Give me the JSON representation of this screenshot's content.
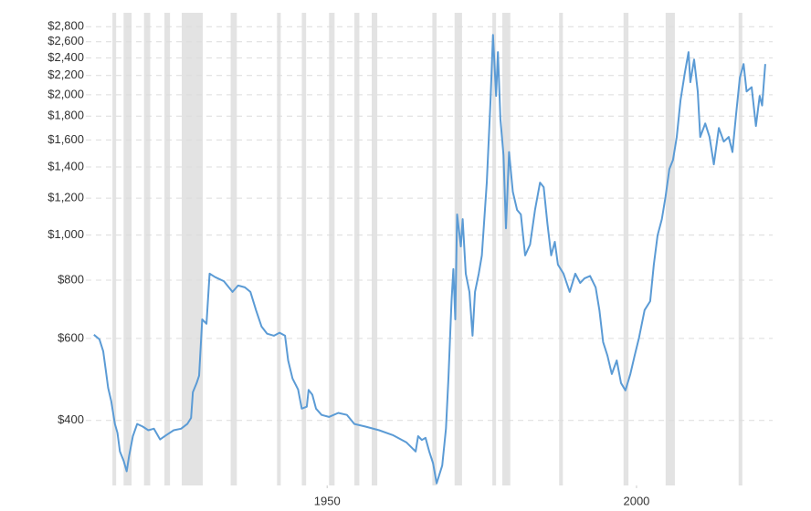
{
  "chart_data": {
    "type": "line",
    "log_scale": true,
    "grid": true,
    "xlim": [
      1911,
      2022
    ],
    "xticks": [
      1950,
      2000
    ],
    "ylim": [
      290,
      3000
    ],
    "yticks": [
      {
        "value": 400,
        "label": "$400"
      },
      {
        "value": 600,
        "label": "$600"
      },
      {
        "value": 800,
        "label": "$800"
      },
      {
        "value": 1000,
        "label": "$1,000"
      },
      {
        "value": 1200,
        "label": "$1,200"
      },
      {
        "value": 1400,
        "label": "$1,400"
      },
      {
        "value": 1600,
        "label": "$1,600"
      },
      {
        "value": 1800,
        "label": "$1,800"
      },
      {
        "value": 2000,
        "label": "$2,000"
      },
      {
        "value": 2200,
        "label": "$2,200"
      },
      {
        "value": 2400,
        "label": "$2,400"
      },
      {
        "value": 2600,
        "label": "$2,600"
      },
      {
        "value": 2800,
        "label": "$2,800"
      }
    ],
    "shade_color": "#e3e3e3",
    "shaded_ranges": [
      [
        1915.3,
        1915.9
      ],
      [
        1917.1,
        1918.4
      ],
      [
        1920.4,
        1921.4
      ],
      [
        1923.7,
        1924.6
      ],
      [
        1926.5,
        1929.9
      ],
      [
        1934.4,
        1935.4
      ],
      [
        1941.9,
        1942.5
      ],
      [
        1945.9,
        1946.6
      ],
      [
        1950.3,
        1951.2
      ],
      [
        1954.4,
        1955.2
      ],
      [
        1957.2,
        1958.1
      ],
      [
        1967.0,
        1967.7
      ],
      [
        1970.6,
        1971.8
      ],
      [
        1976.7,
        1977.3
      ],
      [
        1978.3,
        1979.6
      ],
      [
        1987.5,
        1988.1
      ],
      [
        1997.9,
        1998.7
      ],
      [
        2004.7,
        2006.2
      ],
      [
        2016.5,
        2017.1
      ]
    ],
    "x": [
      1912.3,
      1913.2,
      1913.8,
      1914.2,
      1914.6,
      1915.1,
      1915.7,
      1916.1,
      1916.5,
      1917.1,
      1917.6,
      1918.0,
      1918.6,
      1919.3,
      1920.2,
      1921.1,
      1922.0,
      1923.0,
      1924.0,
      1925.2,
      1926.4,
      1927.4,
      1928.0,
      1928.3,
      1928.9,
      1929.3,
      1929.8,
      1930.5,
      1931.0,
      1931.9,
      1933.3,
      1934.7,
      1935.6,
      1936.7,
      1937.6,
      1938.5,
      1939.4,
      1940.3,
      1941.4,
      1942.3,
      1943.2,
      1943.7,
      1944.4,
      1945.3,
      1945.9,
      1946.7,
      1947.0,
      1947.6,
      1948.2,
      1949.1,
      1950.3,
      1951.8,
      1953.2,
      1954.4,
      1956.2,
      1958.4,
      1960.6,
      1962.8,
      1964.3,
      1964.7,
      1965.3,
      1965.9,
      1966.5,
      1967.1,
      1967.7,
      1968.6,
      1969.2,
      1969.6,
      1970.1,
      1970.4,
      1970.7,
      1971.0,
      1971.6,
      1971.9,
      1972.4,
      1973.0,
      1973.5,
      1973.9,
      1974.5,
      1975.0,
      1975.4,
      1975.8,
      1976.4,
      1976.8,
      1977.3,
      1977.6,
      1978.0,
      1978.5,
      1978.9,
      1979.4,
      1980.0,
      1980.7,
      1981.3,
      1982.0,
      1982.8,
      1983.6,
      1984.4,
      1985.0,
      1985.6,
      1986.2,
      1986.8,
      1987.3,
      1988.2,
      1989.2,
      1990.1,
      1990.9,
      1991.6,
      1992.5,
      1993.4,
      1994.0,
      1994.6,
      1995.3,
      1996.0,
      1996.8,
      1997.5,
      1998.2,
      1999.0,
      1999.7,
      2000.4,
      2001.3,
      2002.2,
      2002.8,
      2003.4,
      2004.1,
      2004.7,
      2005.3,
      2005.9,
      2006.5,
      2007.1,
      2007.8,
      2008.4,
      2008.7,
      2009.3,
      2009.9,
      2010.3,
      2011.1,
      2011.8,
      2012.5,
      2013.3,
      2014.1,
      2014.9,
      2015.5,
      2016.1,
      2016.7,
      2017.3,
      2017.8,
      2018.6,
      2019.3,
      2019.9,
      2020.3,
      2020.8
    ],
    "series": [
      {
        "color": "#5b9bd5",
        "values": [
          611,
          597,
          563,
          515,
          470,
          440,
          393,
          376,
          343,
          328,
          311,
          336,
          370,
          393,
          388,
          381,
          384,
          364,
          372,
          381,
          384,
          393,
          405,
          460,
          481,
          499,
          659,
          645,
          826,
          812,
          796,
          755,
          779,
          772,
          755,
          690,
          636,
          614,
          608,
          617,
          608,
          538,
          492,
          466,
          424,
          428,
          465,
          454,
          424,
          411,
          407,
          415,
          411,
          393,
          388,
          381,
          372,
          359,
          343,
          370,
          363,
          367,
          343,
          324,
          293,
          320,
          384,
          492,
          721,
          845,
          659,
          1107,
          945,
          1082,
          826,
          755,
          608,
          755,
          826,
          904,
          1082,
          1296,
          1945,
          2689,
          1989,
          2470,
          1776,
          1484,
          1034,
          1507,
          1239,
          1132,
          1107,
          904,
          954,
          1132,
          1296,
          1267,
          1058,
          904,
          967,
          864,
          826,
          755,
          826,
          789,
          807,
          817,
          772,
          690,
          589,
          551,
          503,
          538,
          481,
          464,
          503,
          551,
          602,
          690,
          721,
          864,
          998,
          1082,
          1211,
          1386,
          1450,
          1624,
          1945,
          2226,
          2470,
          2128,
          2381,
          2033,
          1624,
          1736,
          1624,
          1418,
          1698,
          1587,
          1624,
          1507,
          1818,
          2177,
          2328,
          2033,
          2077,
          1714,
          1989,
          1897,
          2328
        ]
      }
    ]
  }
}
